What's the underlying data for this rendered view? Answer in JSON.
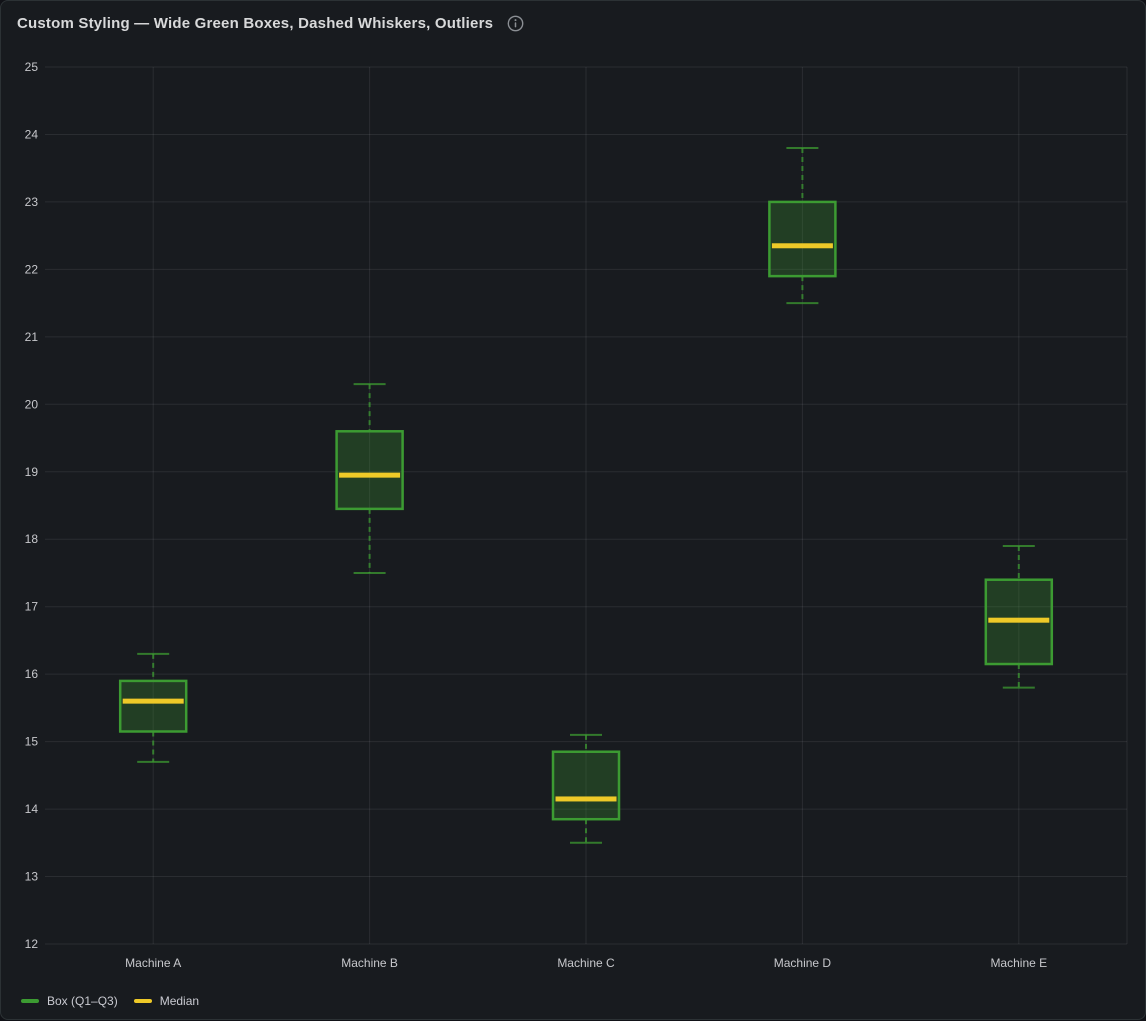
{
  "panel": {
    "title": "Custom Styling — Wide Green Boxes, Dashed Whiskers, Outliers",
    "info_icon": "info-circle-icon"
  },
  "colors": {
    "page_bg": "#111217",
    "panel_bg": "#181b1f",
    "panel_border": "#2c3235",
    "grid": "rgba(204,204,220,0.10)",
    "axis_text": "#c7c8cc",
    "title_text": "#d8d9da",
    "legend_text": "#c9cad1",
    "box_border": "#3c9b32",
    "box_fill_opacity": 0.28,
    "median": "#eec928",
    "whisker": "#3c9b32",
    "info_icon": "#8b8f94"
  },
  "legend": {
    "items": [
      {
        "label": "Box (Q1–Q3)",
        "color": "#3c9b32"
      },
      {
        "label": "Median",
        "color": "#eec928"
      }
    ]
  },
  "chart_data": {
    "type": "boxplot",
    "title": "Custom Styling — Wide Green Boxes, Dashed Whiskers, Outliers",
    "categories": [
      "Machine A",
      "Machine B",
      "Machine C",
      "Machine D",
      "Machine E"
    ],
    "series": [
      {
        "category": "Machine A",
        "whisker_low": 14.7,
        "q1": 15.15,
        "median": 15.6,
        "q3": 15.9,
        "whisker_high": 16.3
      },
      {
        "category": "Machine B",
        "whisker_low": 17.5,
        "q1": 18.45,
        "median": 18.95,
        "q3": 19.6,
        "whisker_high": 20.3
      },
      {
        "category": "Machine C",
        "whisker_low": 13.5,
        "q1": 13.85,
        "median": 14.15,
        "q3": 14.85,
        "whisker_high": 15.1
      },
      {
        "category": "Machine D",
        "whisker_low": 21.5,
        "q1": 21.9,
        "median": 22.35,
        "q3": 23.0,
        "whisker_high": 23.8
      },
      {
        "category": "Machine E",
        "whisker_low": 15.8,
        "q1": 16.15,
        "median": 16.8,
        "q3": 17.4,
        "whisker_high": 17.9
      }
    ],
    "ylim": [
      12,
      25
    ],
    "yticks": [
      12,
      13,
      14,
      15,
      16,
      17,
      18,
      19,
      20,
      21,
      22,
      23,
      24,
      25
    ],
    "xlabel": "",
    "ylabel": "",
    "grid": true,
    "legend_position": "bottom-left",
    "legend": [
      "Box (Q1–Q3)",
      "Median"
    ]
  }
}
